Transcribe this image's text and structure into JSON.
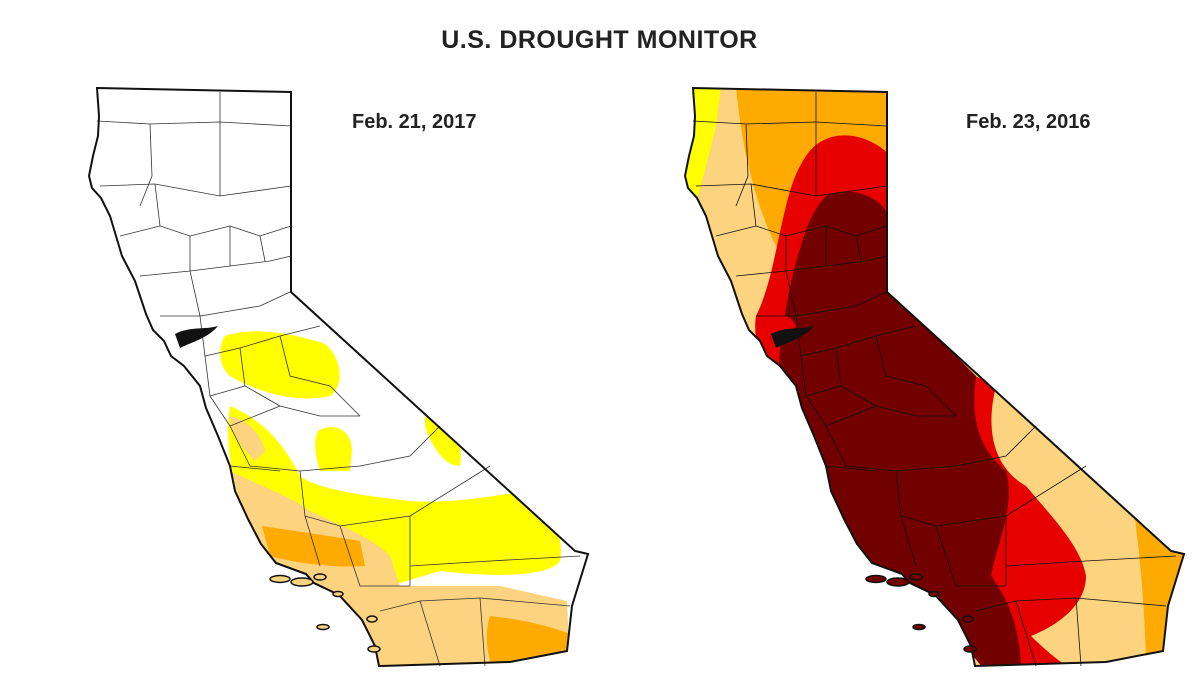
{
  "title": "U.S. DROUGHT MONITOR",
  "colors": {
    "none": "#ffffff",
    "D0": "#ffff00",
    "D1": "#fcd37f",
    "D2": "#ffaa00",
    "D3": "#e60000",
    "D4": "#730000",
    "border": "#111111"
  },
  "maps": [
    {
      "date_label": "Feb. 21, 2017"
    },
    {
      "date_label": "Feb. 23, 2016"
    }
  ]
}
